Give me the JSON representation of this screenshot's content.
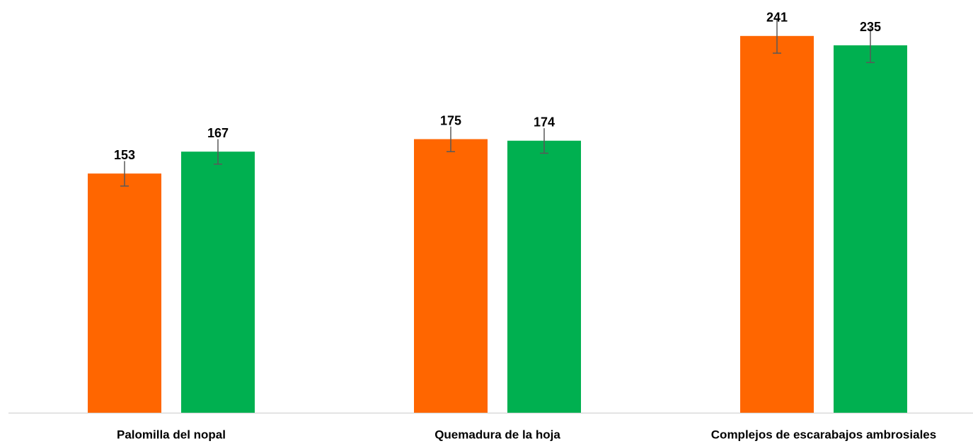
{
  "chart_data": {
    "type": "bar",
    "categories": [
      "Palomilla del nopal",
      "Quemadura de la hoja",
      "Complejos de escarabajos ambrosiales"
    ],
    "series": [
      {
        "color": "#ff6600",
        "values": [
          153,
          175,
          241
        ],
        "errors": [
          8,
          8,
          11
        ]
      },
      {
        "color": "#00b050",
        "values": [
          167,
          174,
          235
        ],
        "errors": [
          8,
          8,
          11
        ]
      }
    ],
    "ylim": [
      0,
      264
    ]
  }
}
